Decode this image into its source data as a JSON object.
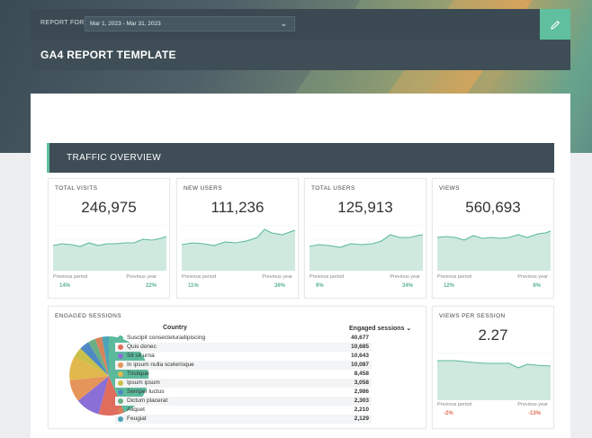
{
  "header": {
    "report_for_label": "REPORT FOR",
    "date_range": "Mar 1, 2023 - Mar 31, 2023",
    "share_icon": "share-icon",
    "edit_icon": "pencil-icon",
    "title": "GA4 REPORT TEMPLATE"
  },
  "section": {
    "title": "TRAFFIC OVERVIEW"
  },
  "kpis": [
    {
      "label": "TOTAL VISITS",
      "value": "246,975",
      "prev_label": "Previous period",
      "prev_value": "14%",
      "year_label": "Previous year",
      "year_value": "22%"
    },
    {
      "label": "NEW USERS",
      "value": "111,236",
      "prev_label": "Previous period",
      "prev_value": "11%",
      "year_label": "Previous year",
      "year_value": "36%"
    },
    {
      "label": "TOTAL USERS",
      "value": "125,913",
      "prev_label": "Previous period",
      "prev_value": "9%",
      "year_label": "Previous year",
      "year_value": "34%"
    },
    {
      "label": "VIEWS",
      "value": "560,693",
      "prev_label": "Previous period",
      "prev_value": "12%",
      "year_label": "Previous year",
      "year_value": "6%"
    }
  ],
  "engaged": {
    "label": "ENGAGED SESSIONS",
    "col_country": "Country",
    "col_sessions": "Engaged sessions",
    "rows": [
      {
        "country": "Suscipit consecteturadipiscing",
        "value": "40,677",
        "color": "#5cba9c"
      },
      {
        "country": "Quis donec",
        "value": "10,685",
        "color": "#e06c5c"
      },
      {
        "country": "Sit sit urna",
        "value": "10,643",
        "color": "#8a6fd6"
      },
      {
        "country": "In ipsum nulla scelerisque",
        "value": "10,087",
        "color": "#e6955a"
      },
      {
        "country": "Tristique",
        "value": "8,458",
        "color": "#e0b84e"
      },
      {
        "country": "Ipsum ipsum",
        "value": "3,058",
        "color": "#c9c049"
      },
      {
        "country": "Semper luctus",
        "value": "2,986",
        "color": "#4f89c4"
      },
      {
        "country": "Dictum placerat",
        "value": "2,303",
        "color": "#6cae84"
      },
      {
        "country": "Aliquet",
        "value": "2,210",
        "color": "#d9835b"
      },
      {
        "country": "Feugiat",
        "value": "2,129",
        "color": "#4da3b8"
      }
    ]
  },
  "views_per_session": {
    "label": "VIEWS PER SESSION",
    "value": "2.27",
    "prev_label": "Previous period",
    "prev_value": "-2%",
    "year_label": "Previous year",
    "year_value": "-13%"
  },
  "colors": {
    "accent": "#5fbf9f",
    "dark": "#3e4d56",
    "positive": "#5cb48f",
    "negative": "#e0705a"
  }
}
